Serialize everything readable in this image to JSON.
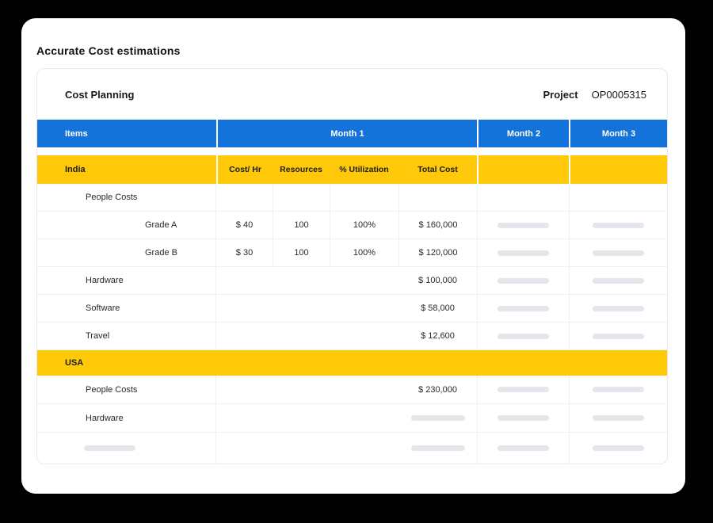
{
  "page": {
    "title": "Accurate Cost estimations"
  },
  "card": {
    "title": "Cost Planning",
    "project_label": "Project",
    "project_number": "OP0005315"
  },
  "table": {
    "header": {
      "items": "Items",
      "month1": "Month 1",
      "month2": "Month 2",
      "month3": "Month 3"
    },
    "india": {
      "label": "India",
      "subheaders": {
        "cost_hr": "Cost/ Hr",
        "resources": "Resources",
        "utilization": "% Utilization",
        "total_cost": "Total Cost"
      },
      "rows": {
        "people_costs": {
          "label": "People Costs"
        },
        "grade_a": {
          "label": "Grade A",
          "cost_hr": "$ 40",
          "resources": "100",
          "utilization": "100%",
          "total_cost": "$ 160,000"
        },
        "grade_b": {
          "label": "Grade B",
          "cost_hr": "$ 30",
          "resources": "100",
          "utilization": "100%",
          "total_cost": "$ 120,000"
        },
        "hardware": {
          "label": "Hardware",
          "total_cost": "$ 100,000"
        },
        "software": {
          "label": "Software",
          "total_cost": "$ 58,000"
        },
        "travel": {
          "label": "Travel",
          "total_cost": "$ 12,600"
        }
      }
    },
    "usa": {
      "label": "USA",
      "rows": {
        "people_costs": {
          "label": "People Costs",
          "total_cost": "$ 230,000"
        },
        "hardware": {
          "label": "Hardware"
        }
      }
    }
  },
  "colors": {
    "header_blue": "#1373DB",
    "accent_yellow": "#FFC90A",
    "skeleton_gray": "#E3E6EB"
  }
}
